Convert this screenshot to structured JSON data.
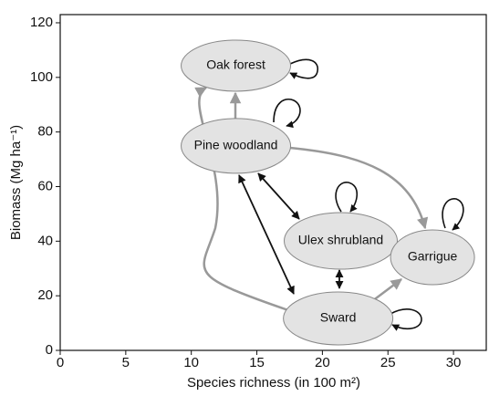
{
  "chart_data": {
    "type": "scatter",
    "xlabel": "Species richness (in 100 m²)",
    "ylabel": "Biomass (Mg ha⁻¹)",
    "xlim": [
      0,
      32.5
    ],
    "xticks": [
      0,
      5,
      10,
      15,
      20,
      25,
      30
    ],
    "ylim": [
      0,
      123
    ],
    "yticks": [
      0,
      20,
      40,
      60,
      80,
      100,
      120
    ],
    "color": "#e3e3e3",
    "points": [
      {
        "label": "Oak forest",
        "x": 13.4,
        "y": 104.3
      },
      {
        "label": "Pine woodland",
        "x": 13.4,
        "y": 74.9
      },
      {
        "label": "Ulex shrubland",
        "x": 21.4,
        "y": 40.1
      },
      {
        "label": "Garrigue",
        "x": 28.4,
        "y": 34.1
      },
      {
        "label": "Sward",
        "x": 21.2,
        "y": 11.7
      }
    ]
  }
}
